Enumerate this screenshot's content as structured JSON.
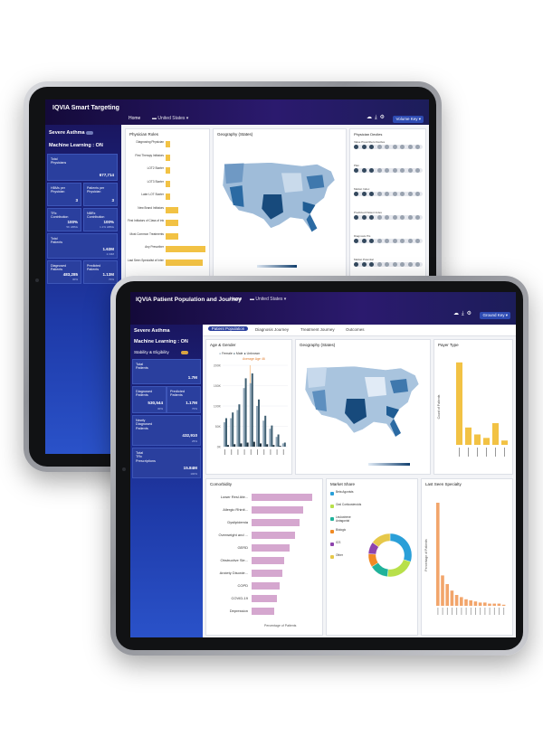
{
  "back_app": {
    "brand": "IQVIA",
    "title": "Smart Targeting",
    "nav_home": "Home",
    "country": "United States",
    "view_label": "Volume Key",
    "indication": "Severe Asthma",
    "ml_label": "Machine Learning : ON",
    "tiles": [
      {
        "label": "Total\nPhysicians",
        "value": "677,714",
        "sub": ""
      },
      {
        "label": "HBMs per\nPhysician",
        "value": "3",
        "sub": ""
      },
      {
        "label": "Patients per\nPhysician",
        "value": "3",
        "sub": ""
      },
      {
        "label": "TRx\nContribution",
        "value": "100%",
        "sub": "5K HBMs"
      },
      {
        "label": "NBRx\nContribution",
        "value": "100%",
        "sub": "1.1% HBMs"
      },
      {
        "label": "Total\nPatients",
        "value": "1.63M",
        "sub": "2.33M"
      },
      {
        "label": "Diagnosed\nPatients",
        "value": "483,285",
        "sub": "30%"
      },
      {
        "label": "Predicted\nPatients",
        "value": "1.13M",
        "sub": "70%"
      }
    ],
    "physician_panel_title": "Physician Roles",
    "physician_roles": [
      {
        "label": "Diagnosing Physician",
        "value": 0.1
      },
      {
        "label": "First Therapy Initiators",
        "value": 0.1
      },
      {
        "label": "LOT2 Starter",
        "value": 0.1
      },
      {
        "label": "LOT3 Starter",
        "value": 0.1
      },
      {
        "label": "Later LOT Starter",
        "value": 0.1
      },
      {
        "label": "New Brand Initiators",
        "value": 0.3
      },
      {
        "label": "First Initiators of Class of interest",
        "value": 0.3
      },
      {
        "label": "Most Common Treatments",
        "value": 0.3
      },
      {
        "label": "Any Prescriber",
        "value": 0.95
      },
      {
        "label": "Last Seen Specialist of Interest",
        "value": 0.9
      }
    ],
    "physician_axis": "Percentage of Physicians",
    "geo_title": "Geography (States)",
    "filter_title": "Physician Deciles",
    "filter_groups": [
      "Value Prescribers Deciles",
      "Plan",
      "Market Index",
      "Predicted Patient Index",
      "Diagnosis Pts",
      "Market Potential"
    ],
    "bottom_tabs": [
      "Prescriber Treatments",
      "Severity Compliant Patient Ratio"
    ]
  },
  "front_app": {
    "brand": "IQVIA",
    "title": "Patient Population and Journey",
    "nav_home": "Home",
    "country": "United States",
    "view_label": "Ground Key",
    "indication": "Severe Asthma",
    "ml_label": "Machine Learning : ON",
    "toggle_label": "Stability & Eligibility",
    "tabs": [
      "Patient Population",
      "Diagnosis Journey",
      "Treatment Journey",
      "Outcomes"
    ],
    "tiles": [
      {
        "label": "Total\nPatients",
        "value": "1.7M",
        "sub": ""
      },
      {
        "label": "Diagnosed\nPatients",
        "value": "530,544",
        "sub": "30%"
      },
      {
        "label": "Predicted\nPatients",
        "value": "1.17M",
        "sub": "70%"
      },
      {
        "label": "Newly\nDiagnosed\nPatients",
        "value": "432,910",
        "sub": "25%"
      },
      {
        "label": "Total\nTRx\nPrescriptions",
        "value": "15.84M",
        "sub": "100%"
      }
    ],
    "age_panel": {
      "title": "Age & Gender",
      "legend": [
        "Female",
        "Male",
        "Unknown"
      ],
      "annotation": "Average Age 46",
      "colors": [
        "#93a9ba",
        "#3f5f72",
        "#1b2e3c"
      ],
      "female": [
        0.3,
        0.35,
        0.45,
        0.72,
        0.78,
        0.5,
        0.32,
        0.22,
        0.12,
        0.04
      ],
      "male": [
        0.35,
        0.42,
        0.52,
        0.84,
        0.9,
        0.58,
        0.38,
        0.26,
        0.15,
        0.05
      ],
      "unknown": [
        0.02,
        0.03,
        0.04,
        0.05,
        0.06,
        0.04,
        0.03,
        0.02,
        0.01,
        0.0
      ],
      "y_ticks": [
        "200K",
        "150K",
        "100K",
        "50K",
        "0K"
      ]
    },
    "geo_title": "Geography (States)",
    "payer_panel": {
      "title": "Payer Type",
      "values": [
        0.95,
        0.2,
        0.12,
        0.08,
        0.25,
        0.05
      ],
      "axis": "Count of Patients"
    },
    "comorbidity_panel": {
      "title": "Comorbidity",
      "axis": "Percentage of Patients",
      "items": [
        {
          "label": "Lower Resl Attr...",
          "value": 0.95
        },
        {
          "label": "Allergic Rhinit...",
          "value": 0.82
        },
        {
          "label": "Dyslipidemia",
          "value": 0.75
        },
        {
          "label": "Overweight and ...",
          "value": 0.68
        },
        {
          "label": "GERD",
          "value": 0.6
        },
        {
          "label": "Obstructive Sle...",
          "value": 0.52
        },
        {
          "label": "Anxiety Disorde...",
          "value": 0.48
        },
        {
          "label": "COPD",
          "value": 0.44
        },
        {
          "label": "COVID-19",
          "value": 0.4
        },
        {
          "label": "Depression",
          "value": 0.36
        }
      ]
    },
    "market_panel": {
      "title": "Market Share",
      "segments": [
        {
          "label": "Beta Agonists",
          "value": 30,
          "color": "#2a9fd8"
        },
        {
          "label": "Oral Corticosteroids",
          "value": 22,
          "color": "#b8e04a"
        },
        {
          "label": "Leukotriene Antagonist",
          "value": 14,
          "color": "#1fb29a"
        },
        {
          "label": "Biologic",
          "value": 10,
          "color": "#f08a24"
        },
        {
          "label": "ICS",
          "value": 9,
          "color": "#8e44ad"
        },
        {
          "label": "Other",
          "value": 15,
          "color": "#e6c84a"
        }
      ]
    },
    "specialty_panel": {
      "title": "Last Seen Specialty",
      "axis": "Percentage of Patients",
      "values": [
        0.95,
        0.28,
        0.2,
        0.14,
        0.1,
        0.08,
        0.06,
        0.05,
        0.04,
        0.03,
        0.03,
        0.02,
        0.02,
        0.02,
        0.01
      ]
    }
  }
}
